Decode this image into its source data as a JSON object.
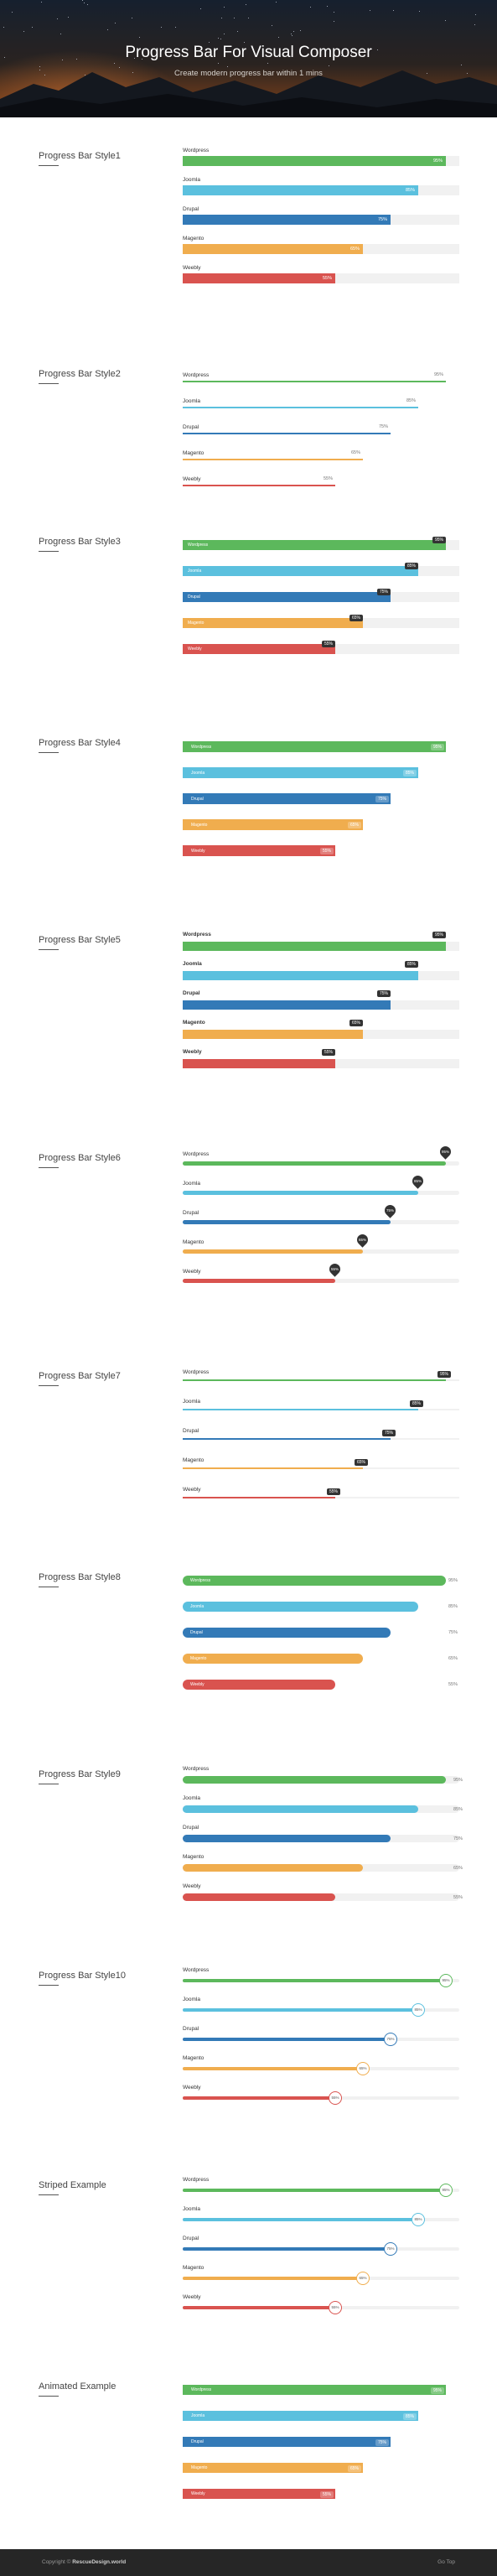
{
  "hero": {
    "title": "Progress Bar For Visual Composer",
    "subtitle": "Create modern progress bar within 1 mins"
  },
  "colors": {
    "wordpress": "#5cb85c",
    "joomla": "#5bc0de",
    "drupal": "#337ab7",
    "magento": "#f0ad4e",
    "weebly": "#d9534f"
  },
  "bars": [
    {
      "label": "Wordpress",
      "value": 95,
      "color": "#5cb85c"
    },
    {
      "label": "Joomla",
      "value": 85,
      "color": "#5bc0de"
    },
    {
      "label": "Drupal",
      "value": 75,
      "color": "#337ab7"
    },
    {
      "label": "Magento",
      "value": 65,
      "color": "#f0ad4e"
    },
    {
      "label": "Weebly",
      "value": 55,
      "color": "#d9534f"
    }
  ],
  "sections": [
    {
      "id": "style1",
      "title": "Progress Bar Style1"
    },
    {
      "id": "style2",
      "title": "Progress Bar Style2"
    },
    {
      "id": "style3",
      "title": "Progress Bar Style3"
    },
    {
      "id": "style4",
      "title": "Progress Bar Style4"
    },
    {
      "id": "style5",
      "title": "Progress Bar Style5"
    },
    {
      "id": "style6",
      "title": "Progress Bar Style6"
    },
    {
      "id": "style7",
      "title": "Progress Bar Style7"
    },
    {
      "id": "style8",
      "title": "Progress Bar Style8"
    },
    {
      "id": "style9",
      "title": "Progress Bar Style9"
    },
    {
      "id": "style10",
      "title": "Progress Bar Style10"
    },
    {
      "id": "striped",
      "title": "Striped Example"
    },
    {
      "id": "animated",
      "title": "Animated Example"
    }
  ],
  "footer": {
    "copyright_prefix": "Copyright ©",
    "brand": "RescueDesign.world",
    "back_to_top": "Go Top"
  }
}
